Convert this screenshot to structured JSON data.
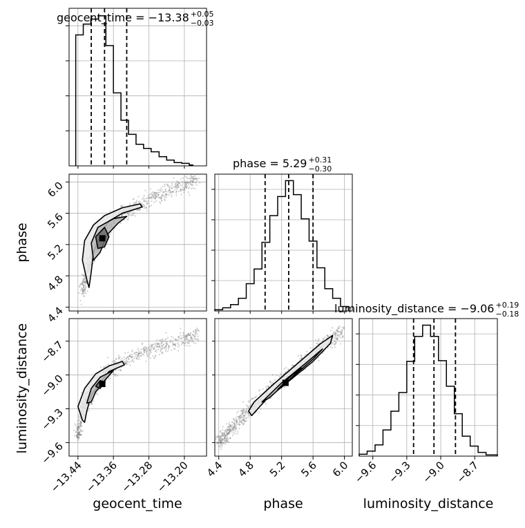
{
  "chart_data": {
    "type": "corner",
    "parameters": [
      "geocent_time",
      "phase",
      "luminosity_distance"
    ],
    "titles": [
      {
        "param": "geocent_time",
        "text": "geocent_time = −13.38",
        "sup": "+0.05",
        "sub": "−0.03"
      },
      {
        "param": "phase",
        "text": "phase = 5.29",
        "sup": "+0.31",
        "sub": "−0.30"
      },
      {
        "param": "luminosity_distance",
        "text": "luminosity_distance = −9.06",
        "sup": "+0.19",
        "sub": "−0.18"
      }
    ],
    "ranges": {
      "geocent_time": [
        -13.46,
        -13.15
      ],
      "phase": [
        4.35,
        6.1
      ],
      "luminosity_distance": [
        -9.72,
        -8.5
      ]
    },
    "ticks": {
      "geocent_time": [
        {
          "v": -13.44,
          "label": "−13.44"
        },
        {
          "v": -13.36,
          "label": "−13.36"
        },
        {
          "v": -13.28,
          "label": "−13.28"
        },
        {
          "v": -13.2,
          "label": "−13.20"
        }
      ],
      "phase": [
        {
          "v": 4.4,
          "label": "4.4"
        },
        {
          "v": 4.8,
          "label": "4.8"
        },
        {
          "v": 5.2,
          "label": "5.2"
        },
        {
          "v": 5.6,
          "label": "5.6"
        },
        {
          "v": 6.0,
          "label": "6.0"
        }
      ],
      "luminosity_distance": [
        {
          "v": -9.6,
          "label": "−9.6"
        },
        {
          "v": -9.3,
          "label": "−9.3"
        },
        {
          "v": -9.0,
          "label": "−9.0"
        },
        {
          "v": -8.7,
          "label": "−8.7"
        }
      ]
    },
    "quantiles": {
      "geocent_time": [
        -13.41,
        -13.38,
        -13.33
      ],
      "phase": [
        4.99,
        5.29,
        5.6
      ],
      "luminosity_distance": [
        -9.24,
        -9.06,
        -8.87
      ]
    },
    "histograms": {
      "geocent_time": {
        "edges": [
          -13.445,
          -13.437,
          -13.428,
          -13.42,
          -13.411,
          -13.403,
          -13.394,
          -13.386,
          -13.377,
          -13.369,
          -13.36,
          -13.352,
          -13.343,
          -13.335,
          -13.326,
          -13.317,
          -13.309,
          -13.3,
          -13.292,
          -13.283,
          -13.275,
          -13.266,
          -13.257,
          -13.249,
          -13.24,
          -13.232,
          -13.223,
          -13.215,
          -13.206,
          -13.198,
          -13.189,
          -13.181
        ],
        "counts": [
          158,
          158,
          171,
          171,
          177,
          177,
          181,
          181,
          145,
          145,
          88,
          88,
          55,
          55,
          38,
          38,
          26,
          26,
          21,
          21,
          17,
          17,
          11,
          11,
          7,
          7,
          4,
          4,
          3,
          3,
          1
        ]
      },
      "phase": {
        "edges": [
          4.35,
          4.45,
          4.55,
          4.65,
          4.75,
          4.85,
          4.95,
          5.05,
          5.15,
          5.25,
          5.35,
          5.45,
          5.55,
          5.65,
          5.75,
          5.85,
          5.95,
          6.05
        ],
        "counts": [
          2,
          5,
          10,
          20,
          43,
          66,
          108,
          150,
          180,
          205,
          183,
          145,
          110,
          68,
          35,
          20,
          7
        ]
      },
      "luminosity_distance": {
        "edges": [
          -9.72,
          -9.65,
          -9.58,
          -9.51,
          -9.44,
          -9.37,
          -9.3,
          -9.23,
          -9.16,
          -9.09,
          -9.02,
          -8.95,
          -8.88,
          -8.81,
          -8.74,
          -8.67,
          -8.6,
          -8.5
        ],
        "counts": [
          3,
          8,
          18,
          42,
          72,
          102,
          152,
          192,
          210,
          192,
          153,
          112,
          68,
          32,
          16,
          6,
          2
        ]
      }
    },
    "scatter": [
      {
        "x": "geocent_time",
        "y": "phase",
        "ridge": [
          [
            -13.43,
            4.6
          ],
          [
            -13.415,
            4.95
          ],
          [
            -13.4,
            5.15
          ],
          [
            -13.385,
            5.3
          ],
          [
            -13.37,
            5.42
          ],
          [
            -13.35,
            5.55
          ],
          [
            -13.33,
            5.63
          ],
          [
            -13.3,
            5.72
          ],
          [
            -13.27,
            5.8
          ],
          [
            -13.24,
            5.88
          ],
          [
            -13.2,
            5.96
          ],
          [
            -13.17,
            6.05
          ]
        ],
        "contours": [
          [
            [
              -13.42,
              4.75
            ],
            [
              -13.43,
              5.0
            ],
            [
              -13.425,
              5.25
            ],
            [
              -13.405,
              5.45
            ],
            [
              -13.38,
              5.57
            ],
            [
              -13.34,
              5.67
            ],
            [
              -13.3,
              5.72
            ],
            [
              -13.295,
              5.68
            ],
            [
              -13.34,
              5.6
            ],
            [
              -13.37,
              5.5
            ],
            [
              -13.39,
              5.33
            ],
            [
              -13.405,
              5.1
            ],
            [
              -13.41,
              4.85
            ],
            [
              -13.415,
              4.65
            ]
          ],
          [
            [
              -13.405,
              5.0
            ],
            [
              -13.41,
              5.22
            ],
            [
              -13.395,
              5.42
            ],
            [
              -13.36,
              5.53
            ],
            [
              -13.33,
              5.56
            ],
            [
              -13.35,
              5.47
            ],
            [
              -13.375,
              5.32
            ],
            [
              -13.39,
              5.1
            ]
          ],
          [
            [
              -13.395,
              5.15
            ],
            [
              -13.4,
              5.3
            ],
            [
              -13.38,
              5.42
            ],
            [
              -13.37,
              5.3
            ],
            [
              -13.38,
              5.17
            ]
          ]
        ],
        "peak": [
          -13.385,
          5.28
        ]
      },
      {
        "x": "geocent_time",
        "y": "luminosity_distance",
        "ridge": [
          [
            -13.44,
            -9.55
          ],
          [
            -13.43,
            -9.3
          ],
          [
            -13.415,
            -9.2
          ],
          [
            -13.4,
            -9.1
          ],
          [
            -13.38,
            -9.0
          ],
          [
            -13.36,
            -8.93
          ],
          [
            -13.33,
            -8.87
          ],
          [
            -13.3,
            -8.81
          ],
          [
            -13.27,
            -8.77
          ],
          [
            -13.24,
            -8.73
          ],
          [
            -13.2,
            -8.68
          ],
          [
            -13.17,
            -8.63
          ]
        ],
        "contours": [
          [
            [
              -13.43,
              -9.4
            ],
            [
              -13.44,
              -9.28
            ],
            [
              -13.425,
              -9.12
            ],
            [
              -13.4,
              -8.99
            ],
            [
              -13.37,
              -8.92
            ],
            [
              -13.34,
              -8.88
            ],
            [
              -13.335,
              -8.91
            ],
            [
              -13.37,
              -8.97
            ],
            [
              -13.39,
              -9.07
            ],
            [
              -13.41,
              -9.18
            ],
            [
              -13.42,
              -9.32
            ],
            [
              -13.425,
              -9.42
            ]
          ],
          [
            [
              -13.42,
              -9.25
            ],
            [
              -13.41,
              -9.12
            ],
            [
              -13.39,
              -9.02
            ],
            [
              -13.36,
              -8.96
            ],
            [
              -13.38,
              -9.05
            ],
            [
              -13.4,
              -9.15
            ],
            [
              -13.41,
              -9.24
            ]
          ],
          [
            [
              -13.4,
              -9.1
            ],
            [
              -13.39,
              -9.05
            ],
            [
              -13.38,
              -9.06
            ],
            [
              -13.39,
              -9.12
            ]
          ]
        ],
        "peak": [
          -13.385,
          -9.08
        ]
      },
      {
        "x": "phase",
        "y": "luminosity_distance",
        "ridge": [
          [
            4.4,
            -9.6
          ],
          [
            4.6,
            -9.45
          ],
          [
            4.8,
            -9.3
          ],
          [
            5.0,
            -9.17
          ],
          [
            5.2,
            -9.05
          ],
          [
            5.4,
            -8.93
          ],
          [
            5.6,
            -8.82
          ],
          [
            5.8,
            -8.7
          ],
          [
            6.0,
            -8.6
          ]
        ],
        "contours": [
          [
            [
              4.78,
              -9.32
            ],
            [
              4.85,
              -9.24
            ],
            [
              5.1,
              -9.08
            ],
            [
              5.4,
              -8.9
            ],
            [
              5.7,
              -8.72
            ],
            [
              5.85,
              -8.65
            ],
            [
              5.82,
              -8.72
            ],
            [
              5.6,
              -8.88
            ],
            [
              5.3,
              -9.05
            ],
            [
              5.0,
              -9.22
            ],
            [
              4.82,
              -9.36
            ]
          ],
          [
            [
              4.95,
              -9.24
            ],
            [
              5.2,
              -9.07
            ],
            [
              5.5,
              -8.9
            ],
            [
              5.72,
              -8.77
            ],
            [
              5.6,
              -8.86
            ],
            [
              5.3,
              -9.04
            ],
            [
              5.05,
              -9.2
            ]
          ],
          [
            [
              5.15,
              -9.13
            ],
            [
              5.3,
              -9.02
            ],
            [
              5.45,
              -8.94
            ],
            [
              5.35,
              -9.01
            ],
            [
              5.2,
              -9.11
            ]
          ]
        ],
        "peak": [
          5.25,
          -9.07
        ]
      }
    ],
    "grid": true
  }
}
